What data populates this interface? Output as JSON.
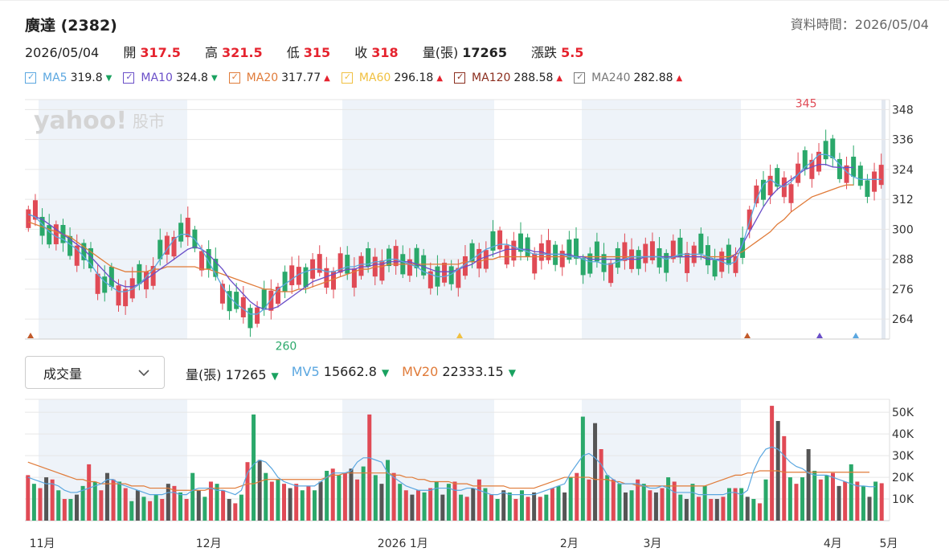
{
  "header": {
    "title": "廣達 (2382)",
    "data_time": "資料時間：2026/05/04"
  },
  "quote": {
    "date": "2026/05/04",
    "open_label": "開",
    "open": "317.5",
    "high_label": "高",
    "high": "321.5",
    "low_label": "低",
    "low": "315",
    "close_label": "收",
    "close": "318",
    "volume_label": "量(張)",
    "volume": "17265",
    "change_label": "漲跌",
    "change": "5.5"
  },
  "ma_legend": [
    {
      "name": "MA5",
      "value": "319.8",
      "dir": "down",
      "color": "#5ba7e0"
    },
    {
      "name": "MA10",
      "value": "324.8",
      "dir": "down",
      "color": "#6a4fc8"
    },
    {
      "name": "MA20",
      "value": "317.77",
      "dir": "up",
      "color": "#e07b39"
    },
    {
      "name": "MA60",
      "value": "296.18",
      "dir": "up",
      "color": "#f0c040"
    },
    {
      "name": "MA120",
      "value": "288.58",
      "dir": "up",
      "color": "#8b2e1e"
    },
    {
      "name": "MA240",
      "value": "282.88",
      "dir": "up",
      "color": "#777777"
    }
  ],
  "volume_panel": {
    "selector": "成交量",
    "vol_label": "量(張)",
    "vol_value": "17265",
    "mv5_label": "MV5",
    "mv5_value": "15662.8",
    "mv20_label": "MV20",
    "mv20_value": "22333.15"
  },
  "colors": {
    "up": "#e04a55",
    "down": "#2aa86a",
    "flat": "#555555",
    "band": "#eef3f9"
  },
  "chart_data": [
    {
      "type": "candlestick",
      "title": "",
      "y_ticks": [
        264,
        276,
        288,
        300,
        312,
        324,
        336,
        348
      ],
      "ylim": [
        256,
        352
      ],
      "annotations": [
        {
          "label": "345",
          "value": 345
        },
        {
          "label": "260",
          "value": 260
        }
      ],
      "x_ticks": [
        "11月",
        "12月",
        "2026 1月",
        "2月",
        "3月",
        "4月",
        "5月"
      ],
      "x_tick_index": [
        2,
        26,
        54,
        78,
        90,
        116,
        138
      ],
      "series_ma5": [
        306,
        305,
        302,
        299,
        297,
        296,
        294,
        292,
        289,
        286,
        282,
        279,
        277,
        275,
        275,
        276,
        278,
        281,
        284,
        288,
        292,
        296,
        298,
        298,
        296,
        292,
        287,
        282,
        277,
        273,
        270,
        268,
        266,
        266,
        268,
        272,
        276,
        278,
        280,
        282,
        283,
        284,
        284,
        283,
        283,
        284,
        285,
        285,
        286,
        286,
        287,
        287,
        288,
        288,
        287,
        286,
        285,
        283,
        282,
        281,
        281,
        282,
        284,
        286,
        288,
        290,
        292,
        293,
        294,
        294,
        293,
        292,
        291,
        290,
        290,
        290,
        290,
        290,
        289,
        289,
        288,
        287,
        287,
        286,
        286,
        287,
        288,
        289,
        289,
        289,
        289,
        289,
        288,
        289,
        290,
        290,
        290,
        290,
        289,
        288,
        287,
        286,
        287,
        294,
        303,
        312,
        318,
        320,
        318,
        317,
        319,
        322,
        325,
        327,
        330,
        330,
        329,
        326,
        323,
        321,
        320,
        320,
        320,
        320
      ],
      "series_ma10": [
        306,
        305,
        304,
        302,
        300,
        298,
        296,
        294,
        292,
        289,
        286,
        283,
        280,
        278,
        277,
        277,
        278,
        280,
        282,
        284,
        286,
        288,
        290,
        292,
        293,
        292,
        290,
        287,
        284,
        280,
        277,
        274,
        271,
        269,
        268,
        268,
        269,
        271,
        273,
        275,
        277,
        279,
        280,
        281,
        282,
        283,
        284,
        284,
        285,
        285,
        286,
        286,
        287,
        287,
        287,
        287,
        286,
        285,
        284,
        283,
        283,
        283,
        284,
        285,
        286,
        288,
        289,
        290,
        291,
        292,
        292,
        292,
        292,
        291,
        291,
        290,
        290,
        290,
        290,
        289,
        289,
        288,
        288,
        288,
        288,
        288,
        288,
        288,
        288,
        289,
        289,
        289,
        289,
        289,
        289,
        289,
        289,
        289,
        288,
        288,
        288,
        288,
        290,
        294,
        299,
        304,
        309,
        313,
        316,
        318,
        320,
        322,
        324,
        325,
        326,
        326,
        325,
        324.8,
        324.8,
        324.8
      ],
      "series_ma20": [
        303,
        302,
        301,
        300,
        299,
        298,
        297,
        295,
        293,
        291,
        289,
        287,
        285,
        284,
        283,
        283,
        283,
        283,
        284,
        284,
        285,
        285,
        285,
        285,
        285,
        284,
        284,
        283,
        282,
        281,
        280,
        279,
        278,
        277,
        276,
        276,
        275,
        275,
        275,
        276,
        276,
        277,
        278,
        279,
        280,
        281,
        282,
        283,
        284,
        284,
        285,
        285,
        286,
        286,
        286,
        286,
        286,
        286,
        286,
        286,
        286,
        286,
        286,
        287,
        287,
        287,
        288,
        288,
        289,
        289,
        289,
        289,
        289,
        289,
        289,
        289,
        289,
        289,
        289,
        289,
        289,
        289,
        289,
        289,
        289,
        289,
        289,
        289,
        289,
        289,
        289,
        289,
        289,
        289,
        289,
        289,
        289,
        289,
        289,
        289,
        289,
        289,
        290,
        291,
        293,
        295,
        297,
        299,
        302,
        304,
        307,
        309,
        311,
        313,
        314,
        315,
        316,
        317,
        317.8,
        317.8
      ]
    },
    {
      "type": "bar",
      "title": "成交量",
      "y_ticks_label": [
        "10K",
        "20K",
        "30K",
        "40K",
        "50K"
      ],
      "y_ticks_value": [
        10000,
        20000,
        30000,
        40000,
        50000
      ],
      "ylim": [
        0,
        56000
      ],
      "series": [
        {
          "name": "量(張)",
          "values": [
            21000,
            17000,
            15000,
            20000,
            19000,
            14000,
            10000,
            10000,
            12000,
            16000,
            26000,
            18000,
            14000,
            22000,
            19000,
            18000,
            15000,
            9000,
            14000,
            11000,
            9000,
            12000,
            10000,
            17000,
            16000,
            13000,
            10000,
            22000,
            14000,
            11000,
            18000,
            17000,
            14000,
            10000,
            8000,
            12000,
            27000,
            49000,
            28000,
            22000,
            18000,
            19000,
            17000,
            15000,
            17000,
            14000,
            16000,
            14000,
            18000,
            23000,
            24000,
            21000,
            22000,
            24000,
            19000,
            25000,
            49000,
            21000,
            17000,
            28000,
            22000,
            17000,
            14000,
            12000,
            14000,
            13000,
            15000,
            18000,
            12000,
            17000,
            18000,
            12000,
            11000,
            15000,
            19000,
            15000,
            12000,
            10000,
            14000,
            13000,
            10000,
            14000,
            11000,
            13000,
            11000,
            12000,
            15000,
            16000,
            13000,
            20000,
            22000,
            48000,
            19000,
            45000,
            33000,
            21000,
            19000,
            17000,
            13000,
            14000,
            19000,
            17000,
            14000,
            13000,
            15000,
            20000,
            18000,
            12000,
            10000,
            17000,
            11000,
            16000,
            10000,
            10000,
            11000,
            15000,
            15000,
            15000,
            11000,
            10000,
            8000,
            19000,
            53000,
            46000,
            39000,
            20000,
            17000,
            20000,
            33000,
            23000,
            19000,
            21000,
            22000,
            16000,
            18000,
            26000,
            18000,
            16000,
            11000,
            18000,
            17265
          ]
        },
        {
          "name": "MV5",
          "values": [
            20000,
            19000,
            18000,
            17000,
            17000,
            16000,
            14000,
            13000,
            13000,
            14000,
            15000,
            16000,
            17000,
            19000,
            19000,
            17000,
            16000,
            15000,
            14000,
            13000,
            12000,
            12000,
            12000,
            13000,
            13000,
            12000,
            12000,
            14000,
            15000,
            15000,
            15000,
            14000,
            14000,
            13000,
            12000,
            14000,
            22000,
            26000,
            28000,
            27000,
            24000,
            20000,
            18000,
            17000,
            16000,
            16000,
            16000,
            16000,
            18000,
            20000,
            22000,
            22000,
            22000,
            23000,
            27000,
            29000,
            29000,
            28000,
            27000,
            22000,
            20000,
            18000,
            16000,
            15000,
            14000,
            14000,
            14000,
            15000,
            15000,
            15000,
            14000,
            14000,
            15000,
            15000,
            14000,
            13000,
            12000,
            12000,
            13000,
            12000,
            12000,
            12000,
            12000,
            12000,
            13000,
            14000,
            15000,
            16000,
            17000,
            22000,
            26000,
            30000,
            31000,
            29000,
            26000,
            21000,
            19000,
            17000,
            17000,
            17000,
            17000,
            16000,
            15000,
            15000,
            16000,
            15000,
            13000,
            13000,
            13000,
            13000,
            12000,
            12000,
            12000,
            12000,
            12000,
            13000,
            13000,
            12000,
            14000,
            23000,
            29000,
            33000,
            34000,
            33000,
            30000,
            27000,
            25000,
            24000,
            22000,
            21000,
            21000,
            21000,
            20000,
            19000,
            18000,
            17000,
            16000,
            16000,
            15663,
            15663
          ]
        },
        {
          "name": "MV20",
          "values": [
            27000,
            26000,
            25000,
            24000,
            23000,
            22000,
            21000,
            20000,
            19000,
            19000,
            18000,
            18000,
            17000,
            17000,
            17000,
            17000,
            17000,
            16000,
            16000,
            16000,
            15000,
            15000,
            15000,
            15000,
            14000,
            14000,
            14000,
            14000,
            14000,
            14000,
            15000,
            15000,
            15000,
            15000,
            15000,
            16000,
            17000,
            17000,
            18000,
            19000,
            19000,
            19000,
            19000,
            19000,
            19000,
            19000,
            19000,
            19000,
            19000,
            20000,
            21000,
            21000,
            22000,
            22000,
            22000,
            22000,
            22000,
            22000,
            22000,
            22000,
            21000,
            21000,
            20000,
            20000,
            19000,
            19000,
            18000,
            18000,
            18000,
            18000,
            17000,
            17000,
            17000,
            16000,
            16000,
            16000,
            16000,
            16000,
            16000,
            15000,
            15000,
            15000,
            15000,
            15000,
            16000,
            17000,
            18000,
            19000,
            20000,
            20000,
            20000,
            20000,
            20000,
            19000,
            19000,
            19000,
            18000,
            18000,
            17000,
            17000,
            16000,
            16000,
            16000,
            16000,
            16000,
            16000,
            16000,
            16000,
            16000,
            16000,
            16000,
            16000,
            17000,
            18000,
            19000,
            20000,
            21000,
            21000,
            22000,
            22000,
            23000,
            23000,
            23000,
            23000,
            22333,
            22333,
            22333,
            22333,
            22333,
            22333,
            22333,
            22333,
            22333,
            22333,
            22333,
            22333,
            22333,
            22333,
            22333
          ]
        }
      ]
    }
  ]
}
